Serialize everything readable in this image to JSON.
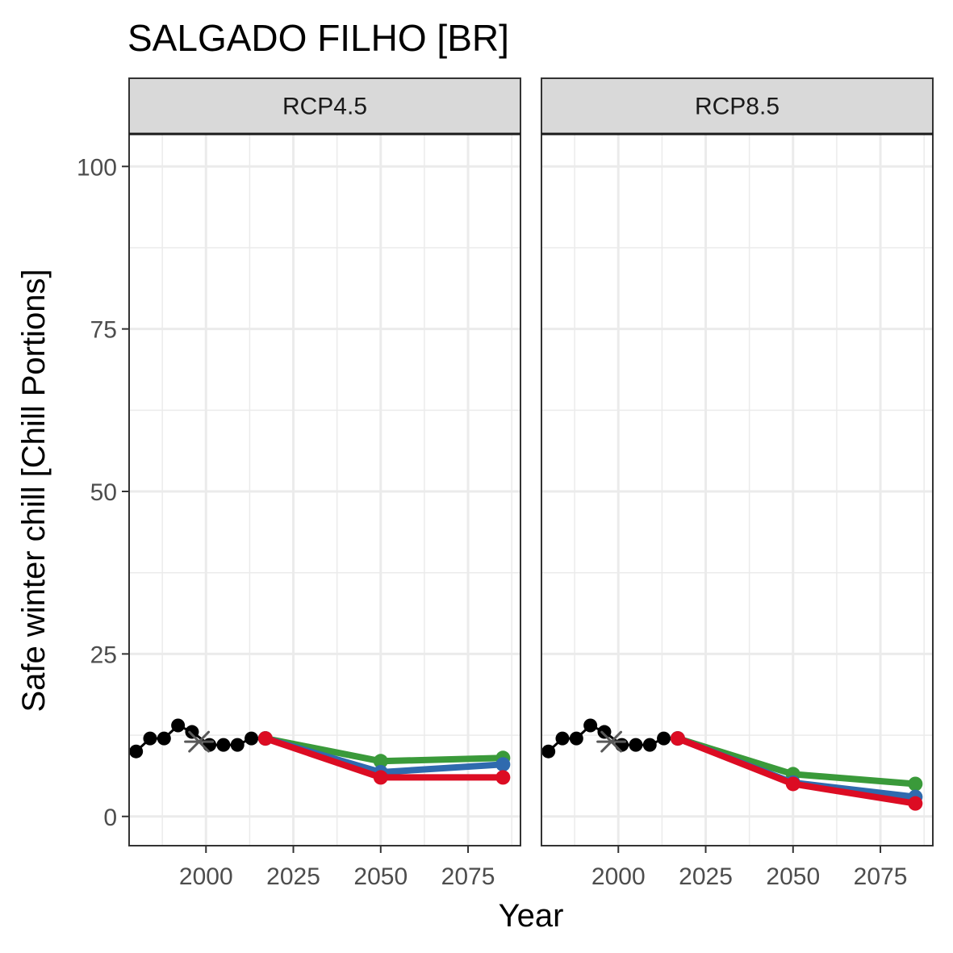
{
  "chart_data": {
    "type": "line",
    "title": "SALGADO FILHO [BR]",
    "xlabel": "Year",
    "ylabel": "Safe winter chill [Chill Portions]",
    "xlim": [
      1978,
      2090
    ],
    "ylim": [
      -4.5,
      105
    ],
    "xticks": [
      2000,
      2025,
      2050,
      2075
    ],
    "xtick_labels": [
      "2000",
      "2025",
      "2050",
      "2075"
    ],
    "yticks": [
      0,
      25,
      50,
      75,
      100
    ],
    "ytick_labels": [
      "0",
      "25",
      "50",
      "75",
      "100"
    ],
    "grid": true,
    "legend": "none",
    "colors": {
      "historic": "#000000",
      "baseline_marker": "#595959",
      "green": "#3a9a3a",
      "blue": "#2f6aae",
      "red": "#dc0c23"
    },
    "panels": [
      {
        "label": "RCP4.5",
        "historic": {
          "x": [
            1980,
            1984,
            1988,
            1992,
            1996,
            2001,
            2005,
            2009,
            2013,
            2017
          ],
          "y": [
            10,
            12,
            12,
            14,
            13,
            11,
            11,
            11,
            12,
            12
          ]
        },
        "baseline": {
          "x": 1998,
          "y": 11.5
        },
        "scenarios": [
          {
            "color": "green",
            "x": [
              2017,
              2050,
              2085
            ],
            "y": [
              12,
              8.5,
              9
            ]
          },
          {
            "color": "blue",
            "x": [
              2017,
              2050,
              2085
            ],
            "y": [
              12,
              6.8,
              8
            ]
          },
          {
            "color": "red",
            "x": [
              2017,
              2050,
              2085
            ],
            "y": [
              12,
              6,
              6
            ]
          }
        ]
      },
      {
        "label": "RCP8.5",
        "historic": {
          "x": [
            1980,
            1984,
            1988,
            1992,
            1996,
            2001,
            2005,
            2009,
            2013,
            2017
          ],
          "y": [
            10,
            12,
            12,
            14,
            13,
            11,
            11,
            11,
            12,
            12
          ]
        },
        "baseline": {
          "x": 1998,
          "y": 11.5
        },
        "scenarios": [
          {
            "color": "green",
            "x": [
              2017,
              2050,
              2085
            ],
            "y": [
              12,
              6.5,
              5
            ]
          },
          {
            "color": "blue",
            "x": [
              2017,
              2050,
              2085
            ],
            "y": [
              12,
              5.2,
              3
            ]
          },
          {
            "color": "red",
            "x": [
              2017,
              2050,
              2085
            ],
            "y": [
              12,
              5,
              2
            ]
          }
        ]
      }
    ]
  }
}
